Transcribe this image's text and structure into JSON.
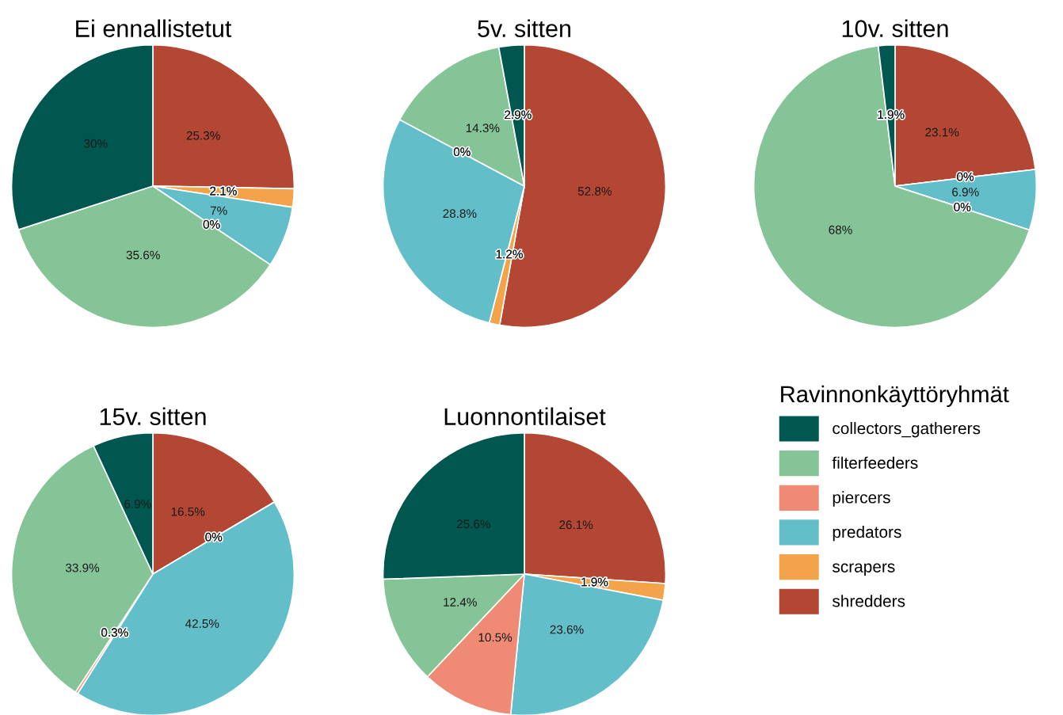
{
  "chart_data": [
    {
      "type": "pie",
      "title": "Ei ennallistetut",
      "categories": [
        "collectors_gatherers",
        "filterfeeders",
        "piercers",
        "predators",
        "scrapers",
        "shredders"
      ],
      "colors": [
        "#00574f",
        "#85c496",
        "#ef8a75",
        "#62bfca",
        "#f3a44a",
        "#b34733"
      ],
      "values": [
        30,
        35.6,
        0,
        7,
        2.1,
        25.3
      ],
      "value_labels": [
        "30%",
        "35.6%",
        "0%",
        "7%",
        "2.1%",
        "25.3%"
      ],
      "legend": "right",
      "legend_title": "Ravinnonkäyttöryhmät"
    },
    {
      "type": "pie",
      "title": "5v. sitten",
      "categories": [
        null,
        null,
        null,
        null,
        null,
        null
      ],
      "colors": [
        "#00574f",
        "#85c496",
        "#ef8a75",
        "#62bfca",
        "#f3a44a",
        "#b34733"
      ],
      "values": [
        2.9,
        14.3,
        0,
        28.8,
        1.2,
        52.8
      ],
      "value_labels": [
        "2.9%",
        "14.3%",
        "0%",
        "28.8%",
        "1.2%",
        "52.8%"
      ]
    },
    {
      "type": "pie",
      "title": "10v. sitten",
      "categories": [
        null,
        null,
        null,
        null,
        null,
        null
      ],
      "colors": [
        "#00574f",
        "#85c496",
        "#ef8a75",
        "#62bfca",
        "#f3a44a",
        "#b34733"
      ],
      "values": [
        1.9,
        68,
        0,
        6.9,
        0,
        23.1
      ],
      "value_labels": [
        "1.9%",
        "68%",
        "0%",
        "6.9%",
        "0%",
        "23.1%"
      ]
    },
    {
      "type": "pie",
      "title": "15v. sitten",
      "categories": [
        null,
        null,
        null,
        null,
        null,
        null
      ],
      "colors": [
        "#00574f",
        "#85c496",
        "#ef8a75",
        "#62bfca",
        "#f3a44a",
        "#b34733"
      ],
      "values": [
        6.9,
        33.9,
        0.3,
        42.5,
        0,
        16.5
      ],
      "value_labels": [
        "6.9%",
        "33.9%",
        "0.3%",
        "42.5%",
        "0%",
        "16.5%"
      ]
    },
    {
      "type": "pie",
      "title": "Luonnontilaiset",
      "categories": [
        null,
        null,
        null,
        null,
        null,
        null
      ],
      "colors": [
        "#00574f",
        "#85c496",
        "#ef8a75",
        "#62bfca",
        "#f3a44a",
        "#b34733"
      ],
      "values": [
        25.6,
        12.4,
        10.5,
        23.6,
        1.9,
        26.1
      ],
      "value_labels": [
        "25.6%",
        "12.4%",
        "10.5%",
        "23.6%",
        "1.9%",
        "26.1%"
      ]
    }
  ]
}
